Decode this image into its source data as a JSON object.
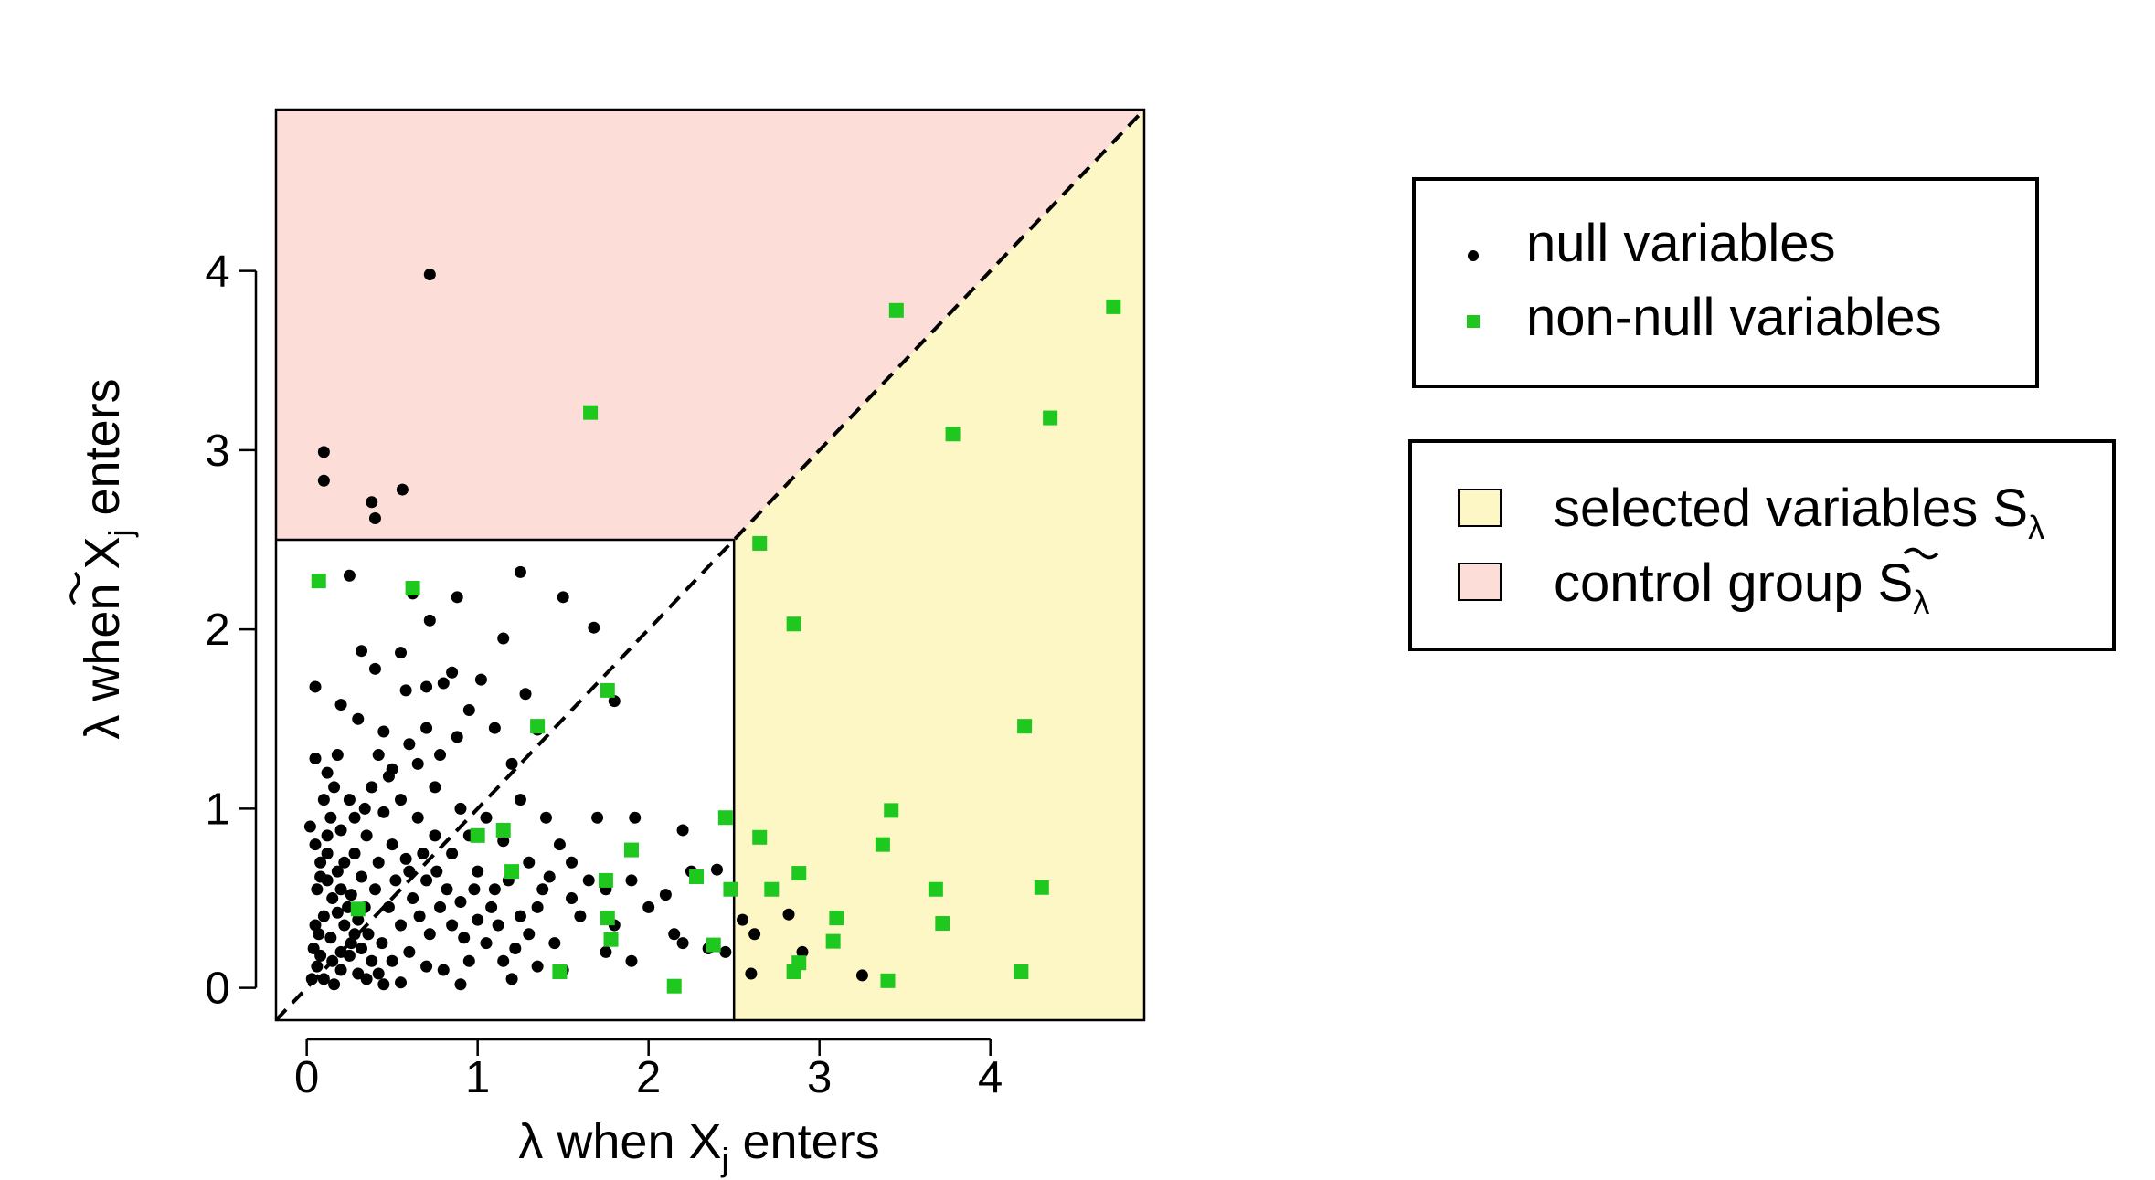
{
  "chart_data": {
    "type": "scatter",
    "title": "",
    "xlabel": {
      "prefix": "λ when X",
      "sub": "j",
      "suffix": " enters"
    },
    "ylabel": {
      "prefix": "λ when ",
      "tilde_symbol": "X",
      "sub": "j",
      "suffix": " enters"
    },
    "xlim": [
      -0.18,
      4.9
    ],
    "ylim": [
      -0.18,
      4.9
    ],
    "x_ticks": [
      0,
      1,
      2,
      3,
      4
    ],
    "y_ticks": [
      0,
      1,
      2,
      3,
      4
    ],
    "threshold_lambda": 2.5,
    "diagonal": "y = x (dashed)",
    "regions": {
      "selected": {
        "color": "#fcf7c4",
        "description": "x > threshold and x > y"
      },
      "control": {
        "color": "#fdddd8",
        "description": "y > threshold and y > x"
      }
    },
    "legends": [
      {
        "position": "top-right",
        "entries": [
          {
            "marker": "dot",
            "color": "#000000",
            "label": "null variables"
          },
          {
            "marker": "square",
            "color": "#1ec81e",
            "label": "non-null variables"
          }
        ]
      },
      {
        "position": "right",
        "entries": [
          {
            "swatch": "#fcf7c4",
            "label": "selected variables S",
            "sub": "λ",
            "tilde": false
          },
          {
            "swatch": "#fdddd8",
            "label_prefix": "control group ",
            "tilde_symbol": "S",
            "sub": "λ",
            "tilde": true
          }
        ]
      }
    ],
    "series": [
      {
        "name": "null variables",
        "marker": "dot",
        "color": "#000000",
        "points": [
          [
            0.72,
            3.98
          ],
          [
            0.1,
            2.99
          ],
          [
            0.1,
            2.83
          ],
          [
            0.38,
            2.71
          ],
          [
            0.4,
            2.62
          ],
          [
            0.56,
            2.78
          ],
          [
            0.25,
            2.3
          ],
          [
            1.25,
            2.32
          ],
          [
            0.62,
            2.2
          ],
          [
            0.72,
            2.05
          ],
          [
            0.88,
            2.18
          ],
          [
            1.5,
            2.18
          ],
          [
            1.68,
            2.01
          ],
          [
            1.15,
            1.95
          ],
          [
            0.55,
            1.87
          ],
          [
            0.32,
            1.88
          ],
          [
            0.4,
            1.78
          ],
          [
            0.58,
            1.66
          ],
          [
            0.7,
            1.68
          ],
          [
            0.8,
            1.7
          ],
          [
            0.85,
            1.76
          ],
          [
            1.02,
            1.72
          ],
          [
            1.28,
            1.64
          ],
          [
            1.35,
            1.44
          ],
          [
            0.95,
            1.55
          ],
          [
            0.88,
            1.4
          ],
          [
            1.1,
            1.45
          ],
          [
            1.8,
            1.6
          ],
          [
            0.05,
            1.68
          ],
          [
            0.2,
            1.58
          ],
          [
            0.3,
            1.5
          ],
          [
            0.45,
            1.43
          ],
          [
            0.6,
            1.36
          ],
          [
            0.65,
            1.25
          ],
          [
            0.5,
            1.22
          ],
          [
            0.38,
            1.12
          ],
          [
            0.25,
            1.05
          ],
          [
            0.12,
            1.2
          ],
          [
            0.18,
            1.3
          ],
          [
            0.05,
            1.28
          ],
          [
            0.75,
            1.12
          ],
          [
            0.9,
            1.0
          ],
          [
            1.05,
            0.95
          ],
          [
            1.2,
            1.25
          ],
          [
            1.25,
            1.05
          ],
          [
            1.4,
            0.95
          ],
          [
            1.48,
            0.8
          ],
          [
            1.7,
            0.95
          ],
          [
            1.92,
            0.95
          ],
          [
            2.2,
            0.88
          ],
          [
            2.25,
            0.65
          ],
          [
            2.4,
            0.66
          ],
          [
            2.1,
            0.52
          ],
          [
            2.0,
            0.45
          ],
          [
            1.9,
            0.6
          ],
          [
            1.65,
            0.6
          ],
          [
            1.55,
            0.7
          ],
          [
            1.35,
            0.45
          ],
          [
            1.3,
            0.3
          ],
          [
            1.55,
            0.5
          ],
          [
            1.75,
            0.55
          ],
          [
            2.15,
            0.3
          ],
          [
            2.2,
            0.25
          ],
          [
            2.35,
            0.22
          ],
          [
            2.45,
            0.2
          ],
          [
            2.55,
            0.38
          ],
          [
            2.62,
            0.3
          ],
          [
            2.82,
            0.41
          ],
          [
            2.9,
            0.2
          ],
          [
            2.6,
            0.08
          ],
          [
            3.25,
            0.07
          ],
          [
            1.75,
            0.2
          ],
          [
            1.9,
            0.15
          ],
          [
            1.5,
            0.1
          ],
          [
            1.2,
            0.05
          ],
          [
            0.9,
            0.02
          ],
          [
            0.55,
            0.03
          ],
          [
            0.02,
            0.9
          ],
          [
            0.05,
            0.8
          ],
          [
            0.08,
            0.7
          ],
          [
            0.12,
            0.6
          ],
          [
            0.15,
            0.5
          ],
          [
            0.18,
            0.42
          ],
          [
            0.22,
            0.35
          ],
          [
            0.28,
            0.3
          ],
          [
            0.32,
            0.22
          ],
          [
            0.38,
            0.15
          ],
          [
            0.42,
            0.08
          ],
          [
            0.45,
            0.02
          ],
          [
            0.04,
            0.22
          ],
          [
            0.06,
            0.12
          ],
          [
            0.1,
            0.05
          ],
          [
            0.16,
            0.02
          ],
          [
            0.2,
            0.1
          ],
          [
            0.25,
            0.18
          ],
          [
            0.3,
            0.08
          ],
          [
            0.35,
            0.05
          ],
          [
            0.5,
            0.15
          ],
          [
            0.6,
            0.2
          ],
          [
            0.7,
            0.12
          ],
          [
            0.8,
            0.1
          ],
          [
            0.95,
            0.15
          ],
          [
            1.05,
            0.25
          ],
          [
            1.15,
            0.15
          ],
          [
            1.25,
            0.4
          ],
          [
            1.1,
            0.55
          ],
          [
            1.0,
            0.65
          ],
          [
            0.85,
            0.75
          ],
          [
            0.75,
            0.85
          ],
          [
            0.65,
            0.95
          ],
          [
            0.55,
            1.05
          ],
          [
            0.45,
            0.98
          ],
          [
            0.35,
            0.85
          ],
          [
            0.28,
            0.75
          ],
          [
            0.2,
            0.88
          ],
          [
            0.14,
            0.95
          ],
          [
            0.1,
            1.05
          ],
          [
            0.06,
            0.55
          ],
          [
            0.1,
            0.4
          ],
          [
            0.14,
            0.28
          ],
          [
            0.2,
            0.2
          ],
          [
            0.26,
            0.52
          ],
          [
            0.32,
            0.62
          ],
          [
            0.4,
            0.55
          ],
          [
            0.48,
            0.45
          ],
          [
            0.55,
            0.35
          ],
          [
            0.62,
            0.5
          ],
          [
            0.7,
            0.6
          ],
          [
            0.78,
            0.45
          ],
          [
            0.85,
            0.35
          ],
          [
            0.92,
            0.28
          ],
          [
            1.0,
            0.38
          ],
          [
            1.08,
            0.45
          ],
          [
            1.18,
            0.6
          ],
          [
            1.3,
            0.7
          ],
          [
            1.42,
            0.62
          ],
          [
            1.6,
            0.4
          ],
          [
            1.8,
            0.35
          ],
          [
            0.05,
            0.35
          ],
          [
            0.08,
            0.18
          ],
          [
            0.12,
            0.75
          ],
          [
            0.18,
            0.65
          ],
          [
            0.24,
            0.45
          ],
          [
            0.3,
            0.38
          ],
          [
            0.36,
            0.3
          ],
          [
            0.44,
            0.25
          ],
          [
            0.52,
            0.6
          ],
          [
            0.58,
            0.72
          ],
          [
            0.66,
            0.4
          ],
          [
            0.72,
            0.3
          ],
          [
            0.82,
            0.55
          ],
          [
            0.9,
            0.48
          ],
          [
            0.98,
            0.55
          ],
          [
            1.12,
            0.35
          ],
          [
            1.22,
            0.22
          ],
          [
            1.35,
            0.12
          ],
          [
            1.45,
            0.25
          ],
          [
            0.03,
            0.05
          ],
          [
            0.07,
            0.3
          ],
          [
            0.15,
            0.15
          ],
          [
            0.22,
            0.7
          ],
          [
            0.28,
            0.95
          ],
          [
            0.34,
            1.0
          ],
          [
            0.42,
            0.7
          ],
          [
            0.5,
            0.8
          ],
          [
            0.6,
            0.65
          ],
          [
            0.68,
            0.75
          ],
          [
            0.76,
            0.65
          ],
          [
            0.42,
            1.3
          ],
          [
            0.48,
            1.18
          ],
          [
            0.7,
            1.45
          ],
          [
            0.78,
            1.3
          ],
          [
            0.12,
            0.85
          ],
          [
            0.16,
            1.12
          ],
          [
            0.08,
            0.62
          ],
          [
            0.95,
            0.85
          ],
          [
            1.15,
            0.82
          ],
          [
            1.38,
            0.55
          ],
          [
            0.2,
            0.55
          ],
          [
            0.26,
            0.25
          ],
          [
            0.34,
            0.45
          ]
        ]
      },
      {
        "name": "non-null variables",
        "marker": "square",
        "color": "#1ec81e",
        "points": [
          [
            3.45,
            3.78
          ],
          [
            4.72,
            3.8
          ],
          [
            1.66,
            3.21
          ],
          [
            4.35,
            3.18
          ],
          [
            3.78,
            3.09
          ],
          [
            2.65,
            2.48
          ],
          [
            2.85,
            2.03
          ],
          [
            0.07,
            2.27
          ],
          [
            0.62,
            2.23
          ],
          [
            1.76,
            1.66
          ],
          [
            1.35,
            1.46
          ],
          [
            4.2,
            1.46
          ],
          [
            3.42,
            0.99
          ],
          [
            2.45,
            0.95
          ],
          [
            2.65,
            0.84
          ],
          [
            1.0,
            0.85
          ],
          [
            1.15,
            0.88
          ],
          [
            1.9,
            0.77
          ],
          [
            3.37,
            0.8
          ],
          [
            2.88,
            0.64
          ],
          [
            2.72,
            0.55
          ],
          [
            3.68,
            0.55
          ],
          [
            4.3,
            0.56
          ],
          [
            2.48,
            0.55
          ],
          [
            2.28,
            0.62
          ],
          [
            1.75,
            0.6
          ],
          [
            1.2,
            0.65
          ],
          [
            0.3,
            0.44
          ],
          [
            1.76,
            0.39
          ],
          [
            1.78,
            0.27
          ],
          [
            3.1,
            0.39
          ],
          [
            3.72,
            0.36
          ],
          [
            3.08,
            0.26
          ],
          [
            2.38,
            0.24
          ],
          [
            2.88,
            0.14
          ],
          [
            2.85,
            0.09
          ],
          [
            4.18,
            0.09
          ],
          [
            3.4,
            0.04
          ],
          [
            2.15,
            0.01
          ],
          [
            1.48,
            0.09
          ]
        ]
      }
    ]
  }
}
